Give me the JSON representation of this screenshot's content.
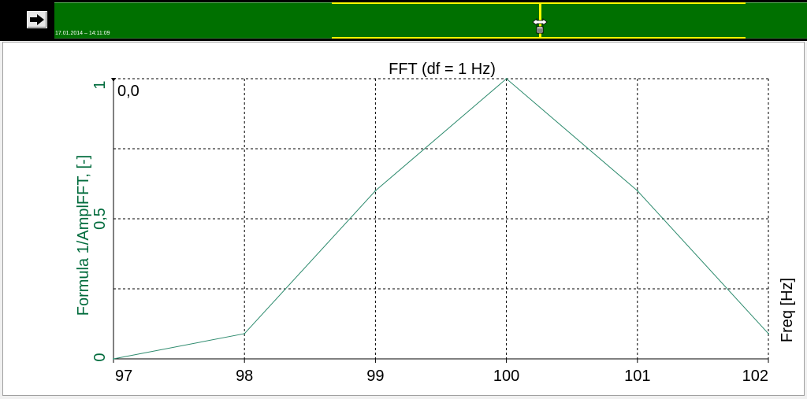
{
  "topbar": {
    "timestamp": "17.01.2014 – 14:11:09",
    "nav_icon": "arrow-right-icon",
    "cursor_icon": "resize-horizontal-icon",
    "colors": {
      "track": "#007000",
      "selection": "#ffff00",
      "background": "#000000"
    }
  },
  "chart_data": {
    "type": "line",
    "title": "FFT (df = 1 Hz)",
    "xlabel": "Freq [Hz]",
    "ylabel": "Formula 1/AmplFFT, [-]",
    "cursor_label": "0,0",
    "x": [
      97,
      98,
      99,
      100,
      101,
      102
    ],
    "series": [
      {
        "values": [
          0.0,
          0.09,
          0.6,
          1.0,
          0.6,
          0.09
        ],
        "color": "#2e8b6e"
      }
    ],
    "xlim": [
      97,
      102
    ],
    "ylim": [
      0,
      1
    ],
    "xticks": [
      "97",
      "98",
      "99",
      "100",
      "101",
      "102"
    ],
    "yticks": [
      "0",
      "0,5",
      "1"
    ],
    "grid": true
  }
}
